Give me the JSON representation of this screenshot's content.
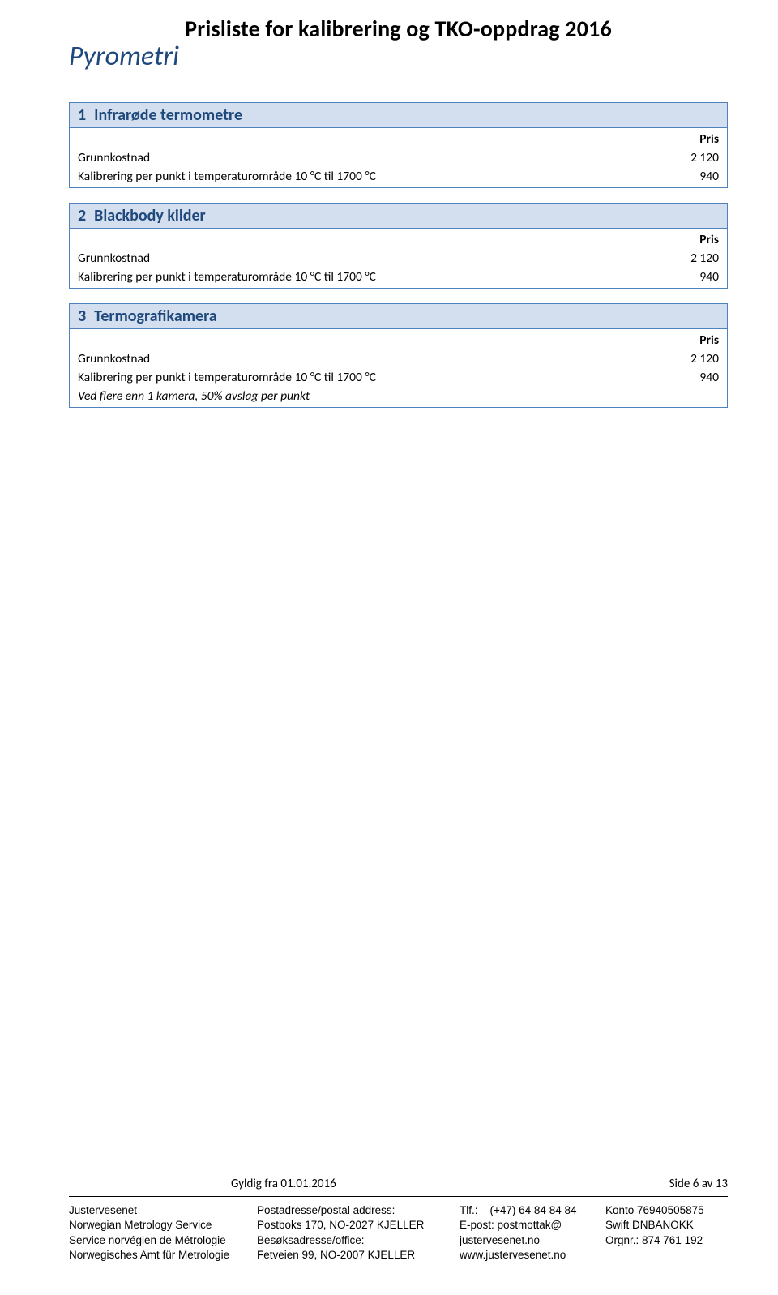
{
  "colors": {
    "accent": "#1f497d",
    "header_bg": "#d3dfee",
    "border": "#4f81bd",
    "text": "#000000",
    "page_bg": "#ffffff"
  },
  "doc_title": "Prisliste for kalibrering og TKO-oppdrag 2016",
  "category_title": "Pyrometri",
  "price_label": "Pris",
  "sections": [
    {
      "num": "1",
      "name": "Infrarøde termometre",
      "rows": [
        {
          "label": "Grunnkostnad",
          "value": "2 120"
        },
        {
          "label": "Kalibrering per punkt i temperaturområde  10 °C  til 1700 °C",
          "value": "940"
        }
      ]
    },
    {
      "num": "2",
      "name": "Blackbody kilder",
      "rows": [
        {
          "label": "Grunnkostnad",
          "value": "2 120"
        },
        {
          "label": "Kalibrering per punkt i temperaturområde  10 °C  til 1700 °C",
          "value": "940"
        }
      ]
    },
    {
      "num": "3",
      "name": "Termografikamera",
      "rows": [
        {
          "label": "Grunnkostnad",
          "value": "2 120"
        },
        {
          "label": "Kalibrering per punkt i temperaturområde  10 °C  til 1700 °C",
          "value": "940"
        },
        {
          "label": "Ved flere enn 1 kamera, 50% avslag per punkt",
          "value": "",
          "note": true
        }
      ]
    }
  ],
  "validity": {
    "from": "Gyldig fra 01.01.2016",
    "page": "Side 6 av 13"
  },
  "footer": {
    "org": {
      "l1": "Justervesenet",
      "l2": "Norwegian Metrology Service",
      "l3": "Service norvégien de Métrologie",
      "l4": "Norwegisches Amt für Metrologie"
    },
    "addr": {
      "l1": "Postadresse/postal address:",
      "l2": "Postboks 170, NO-2027 KJELLER",
      "l3": "Besøksadresse/office:",
      "l4": "Fetveien 99, NO-2007 KJELLER"
    },
    "contact": {
      "l1a": "Tlf.:",
      "l1b": "(+47) 64 84 84 84",
      "l2": "E-post: postmottak@",
      "l3": "justervesenet.no",
      "l4": "www.justervesenet.no"
    },
    "bank": {
      "l1": "Konto 76940505875",
      "l2": "Swift DNBANOKK",
      "l3": "Orgnr.: 874 761 192"
    }
  }
}
